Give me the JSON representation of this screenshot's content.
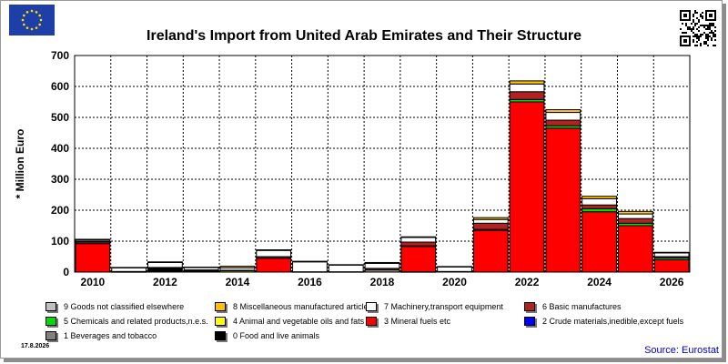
{
  "chart_data": {
    "type": "bar",
    "stacked": true,
    "title": "Ireland's Import from United Arab Emirates and Their Structure",
    "ylabel": "* Million Euro",
    "ylim": [
      0,
      700
    ],
    "yticks": [
      0,
      100,
      200,
      300,
      400,
      500,
      600,
      700
    ],
    "grid": true,
    "x": [
      2010,
      2011,
      2012,
      2013,
      2014,
      2015,
      2016,
      2017,
      2018,
      2019,
      2020,
      2021,
      2022,
      2023,
      2024,
      2025,
      2026
    ],
    "xtick_labels": [
      "2010",
      "2012",
      "2014",
      "2016",
      "2018",
      "2020",
      "2022",
      "2024",
      "2026"
    ],
    "series": [
      {
        "name": "0 Food and live animals",
        "color": "#000000",
        "values": [
          0,
          1,
          13,
          6,
          0,
          0,
          0,
          0,
          0,
          1,
          0,
          0,
          0,
          0,
          0,
          0,
          0
        ]
      },
      {
        "name": "1 Beverages and tobacco",
        "color": "#808080",
        "values": [
          0,
          0,
          0,
          0,
          0,
          0,
          0,
          0,
          8,
          0,
          0,
          0,
          0,
          0,
          0,
          0,
          0
        ]
      },
      {
        "name": "2 Crude materials,inedible,except fuels",
        "color": "#0000ff",
        "values": [
          0,
          0,
          0,
          0,
          0,
          0,
          0,
          0,
          0,
          0,
          0,
          0,
          0,
          0,
          0,
          0,
          0
        ]
      },
      {
        "name": "3 Mineral fuels etc",
        "color": "#ff0000",
        "values": [
          92,
          0,
          0,
          0,
          0,
          45,
          0,
          0,
          0,
          82,
          0,
          135,
          550,
          465,
          195,
          150,
          40
        ]
      },
      {
        "name": "4 Animal and vegetable oils and fats",
        "color": "#ffff00",
        "values": [
          0,
          0,
          0,
          0,
          4,
          0,
          0,
          0,
          0,
          0,
          0,
          0,
          0,
          0,
          0,
          0,
          0
        ]
      },
      {
        "name": "5 Chemicals and related products,n.e.s.",
        "color": "#00dd00",
        "values": [
          2,
          0,
          0,
          0,
          0,
          1,
          0,
          0,
          0,
          2,
          0,
          3,
          8,
          8,
          10,
          8,
          6
        ]
      },
      {
        "name": "6 Basic manufactures",
        "color": "#b22222",
        "values": [
          5,
          1,
          2,
          1,
          2,
          4,
          1,
          1,
          4,
          12,
          2,
          20,
          25,
          18,
          12,
          15,
          4
        ]
      },
      {
        "name": "7 Machinery,transport equipment",
        "color": "#ffffff",
        "values": [
          4,
          12,
          16,
          8,
          8,
          20,
          32,
          22,
          16,
          15,
          15,
          12,
          25,
          25,
          20,
          15,
          12
        ]
      },
      {
        "name": "8 Miscellaneous manufactured articles",
        "color": "#ffc000",
        "values": [
          3,
          1,
          2,
          1,
          5,
          2,
          2,
          1,
          3,
          2,
          1,
          6,
          10,
          9,
          8,
          8,
          2
        ]
      },
      {
        "name": "9 Goods not classified elsewhere",
        "color": "#c0c0c0",
        "values": [
          0,
          0,
          0,
          0,
          0,
          0,
          0,
          0,
          0,
          0,
          0,
          0,
          0,
          0,
          0,
          0,
          0
        ]
      }
    ],
    "legend_position": "bottom"
  },
  "legend_order": [
    9,
    8,
    7,
    6,
    5,
    4,
    3,
    2,
    1,
    0
  ],
  "date": "17.8.2026",
  "source": "Source: Eurostat",
  "icons": {
    "flag": "eu-flag-icon",
    "qr": "qr-code-icon"
  }
}
